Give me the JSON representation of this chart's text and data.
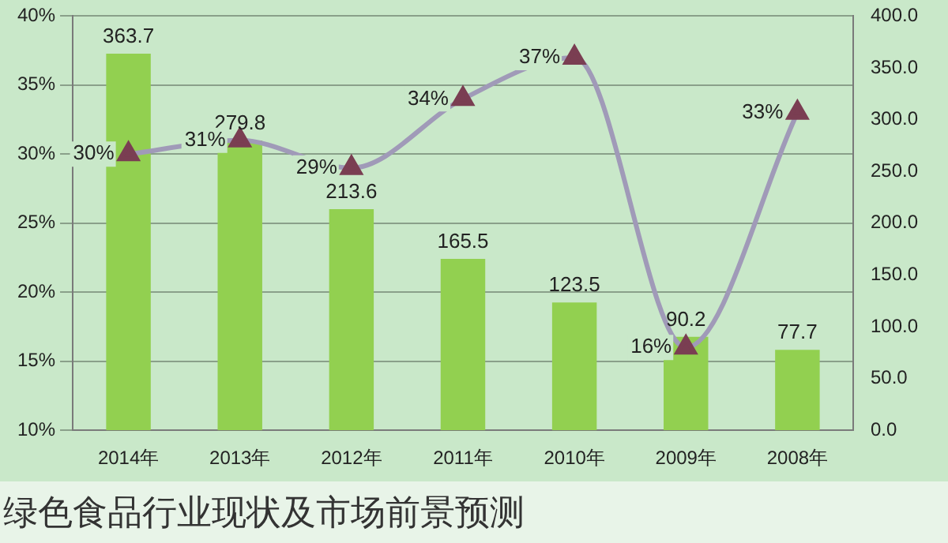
{
  "chart_data": {
    "type": "bar",
    "categories": [
      "2014年",
      "2013年",
      "2012年",
      "2011年",
      "2010年",
      "2009年",
      "2008年"
    ],
    "series": [
      {
        "axis": "y2",
        "color": "#92d050",
        "values": [
          363.7,
          279.8,
          213.6,
          165.5,
          123.5,
          90.2,
          77.7
        ],
        "value_labels": [
          "363.7",
          "279.8",
          "213.6",
          "165.5",
          "123.5",
          "90.2",
          "77.7"
        ]
      },
      {
        "type": "line",
        "axis": "y",
        "color": "#a09ab8",
        "values": [
          30,
          31,
          29,
          34,
          37,
          16,
          33
        ],
        "value_labels": [
          "30%",
          "31%",
          "29%",
          "34%",
          "37%",
          "16%",
          "33%"
        ]
      }
    ],
    "ylim": [
      10,
      40
    ],
    "yticks": [
      {
        "value": 10,
        "label": "10%"
      },
      {
        "value": 15,
        "label": "15%"
      },
      {
        "value": 20,
        "label": "20%"
      },
      {
        "value": 25,
        "label": "25%"
      },
      {
        "value": 30,
        "label": "30%"
      },
      {
        "value": 35,
        "label": "35%"
      },
      {
        "value": 40,
        "label": "40%"
      }
    ],
    "y2lim": [
      0,
      400
    ],
    "y2ticks": [
      {
        "value": 0,
        "label": "0.0"
      },
      {
        "value": 50,
        "label": "50.0"
      },
      {
        "value": 100,
        "label": "100.0"
      },
      {
        "value": 150,
        "label": "150.0"
      },
      {
        "value": 200,
        "label": "200.0"
      },
      {
        "value": 250,
        "label": "250.0"
      },
      {
        "value": 300,
        "label": "300.0"
      },
      {
        "value": 350,
        "label": "350.0"
      },
      {
        "value": 400,
        "label": "400.0"
      }
    ],
    "grid": "y",
    "marker": "triangle",
    "legend": false,
    "annotations": [
      "绿色食品行业现状及市场前景预测"
    ]
  }
}
